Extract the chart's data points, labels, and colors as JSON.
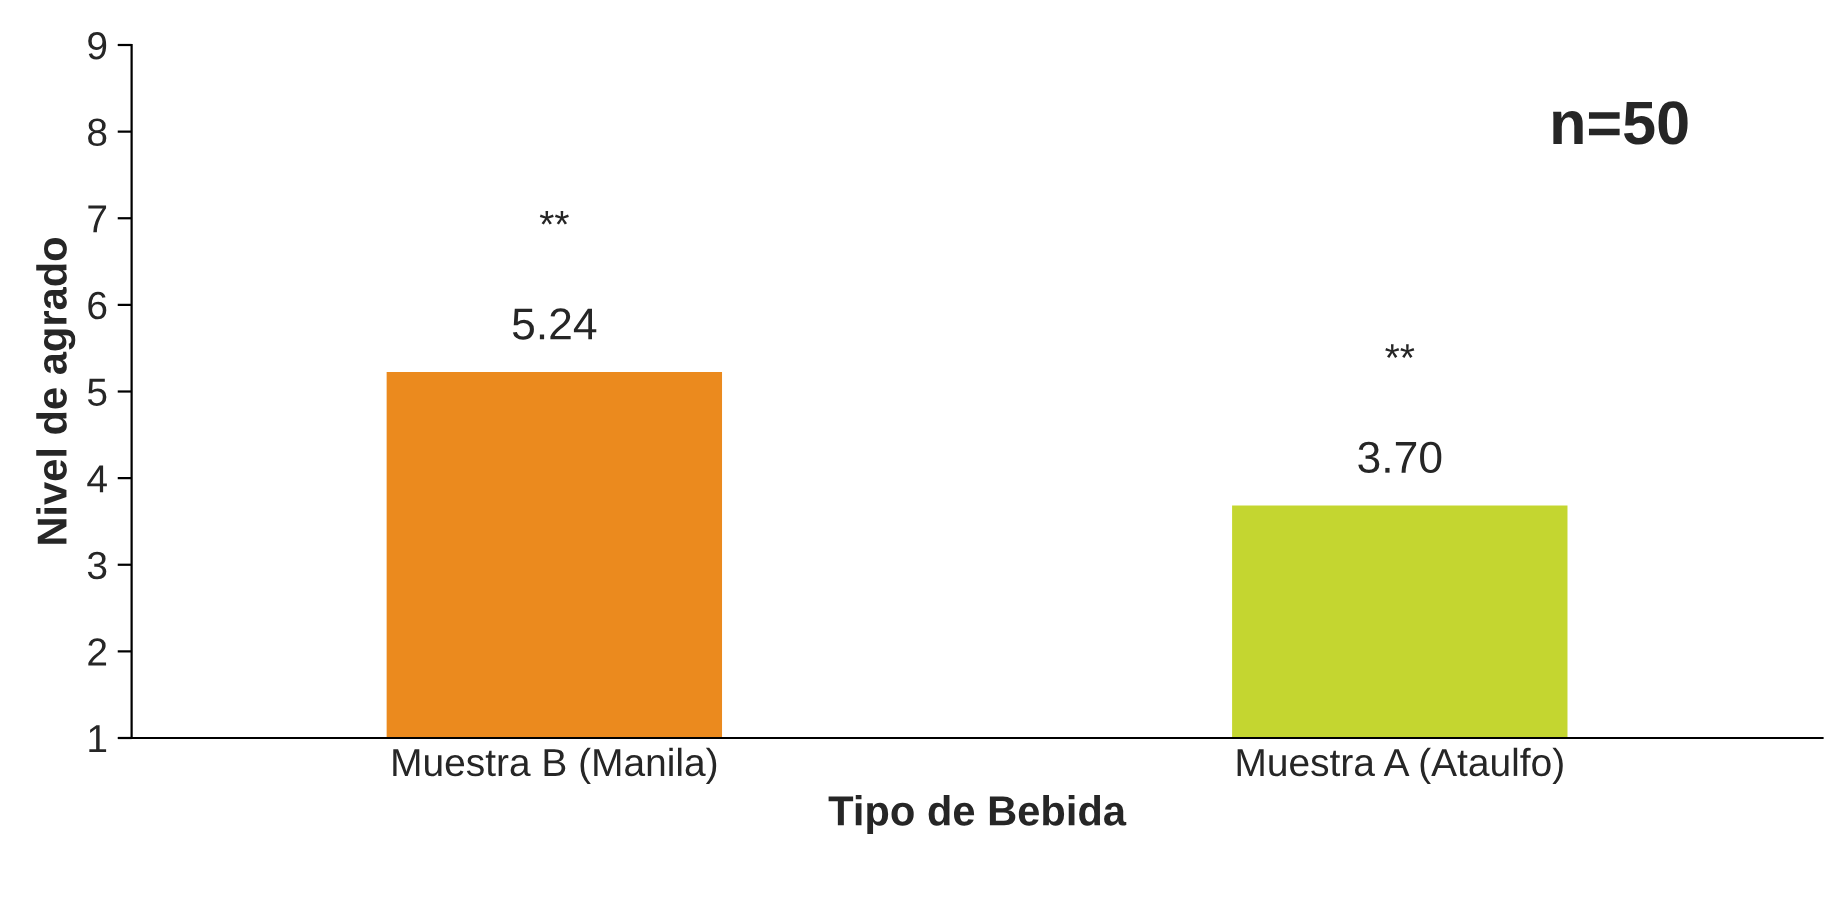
{
  "chart_data": {
    "type": "bar",
    "xlabel": "Tipo de Bebida",
    "ylabel": "Nivel de agrado",
    "categories": [
      "Muestra B (Manila)",
      "Muestra A (Ataulfo)"
    ],
    "values": [
      5.24,
      3.7
    ],
    "colors": [
      "#eb8a1e",
      "#c4d630"
    ],
    "value_labels": [
      "5.24",
      "3.70"
    ],
    "ylim": [
      1,
      9
    ],
    "yticks": [
      1,
      2,
      3,
      4,
      5,
      6,
      7,
      8,
      9
    ],
    "grid": false,
    "legend": false,
    "annotations": [
      "**",
      "**",
      "n=50"
    ]
  }
}
